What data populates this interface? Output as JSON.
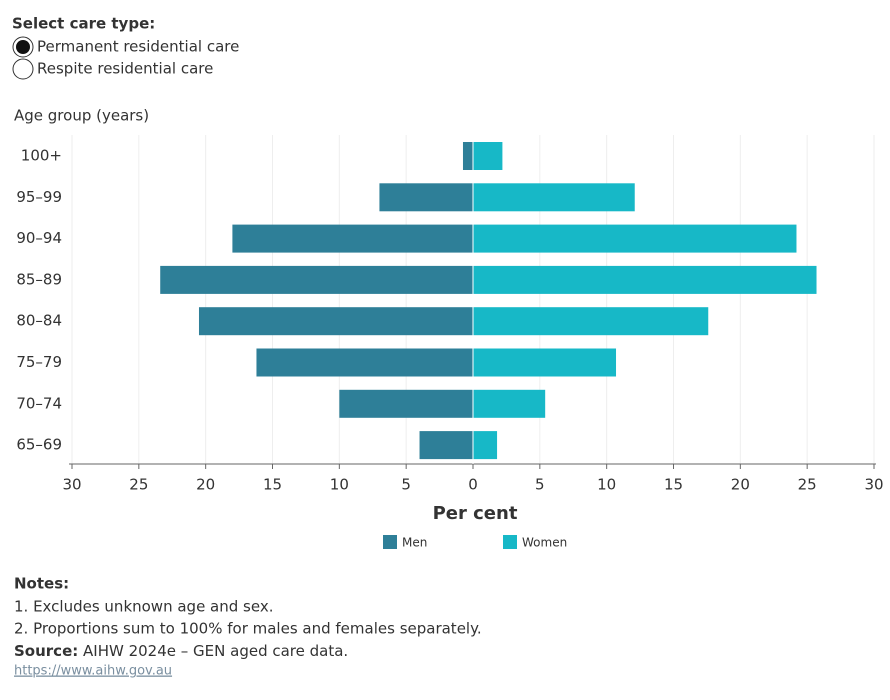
{
  "controls": {
    "label": "Select care type:",
    "options": [
      "Permanent residential care",
      "Respite residential care"
    ],
    "selected": 0
  },
  "chart_data": {
    "type": "pyramid",
    "y_axis_title": "Age group (years)",
    "x_axis_title": "Per cent",
    "categories": [
      "100+",
      "95–99",
      "90–94",
      "85–89",
      "80–84",
      "75–79",
      "70–74",
      "65–69"
    ],
    "series": [
      {
        "name": "Men",
        "color": "#2e7f98",
        "side": "left",
        "values": [
          0.75,
          7.0,
          18.0,
          23.4,
          20.5,
          16.2,
          10.0,
          4.0
        ]
      },
      {
        "name": "Women",
        "color": "#17b8c7",
        "side": "right",
        "values": [
          2.2,
          12.1,
          24.2,
          25.7,
          17.6,
          10.7,
          5.4,
          1.8
        ]
      }
    ],
    "xlim_left": [
      0,
      30
    ],
    "xlim_right": [
      0,
      30
    ],
    "xticks_left": [
      30,
      25,
      20,
      15,
      10,
      5,
      0
    ],
    "xticks_right": [
      5,
      10,
      15,
      20,
      25,
      30
    ],
    "grid": true
  },
  "notes": {
    "title": "Notes:",
    "items": [
      "1. Excludes unknown age and sex.",
      "2. Proportions sum to 100% for males and females separately."
    ]
  },
  "source": {
    "label": "Source:",
    "text": "AIHW 2024e – GEN aged care data."
  },
  "link": "https://www.aihw.gov.au"
}
